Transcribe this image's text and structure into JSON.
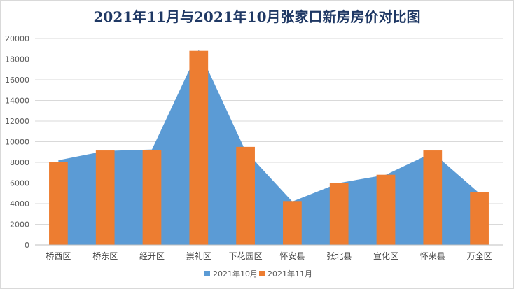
{
  "chart_data": {
    "type": "bar",
    "title": "2021年11月与2021年10月张家口新房房价对比图",
    "categories": [
      "桥西区",
      "桥东区",
      "经开区",
      "崇礼区",
      "下花园区",
      "怀安县",
      "张北县",
      "宣化区",
      "怀来县",
      "万全区"
    ],
    "series": [
      {
        "name": "2021年10月",
        "render": "area",
        "color": "#5b9bd5",
        "values": [
          8200,
          9100,
          9250,
          18900,
          9100,
          4200,
          6000,
          6800,
          8950,
          5000
        ]
      },
      {
        "name": "2021年11月",
        "render": "bar",
        "color": "#ed7d31",
        "values": [
          8050,
          9150,
          9200,
          18800,
          9500,
          4250,
          6000,
          6800,
          9150,
          5150
        ]
      }
    ],
    "ylim": [
      0,
      20000
    ],
    "yticks": [
      0,
      2000,
      4000,
      6000,
      8000,
      10000,
      12000,
      14000,
      16000,
      18000,
      20000
    ],
    "xlabel": "",
    "ylabel": "",
    "grid": true,
    "legend_position": "bottom"
  }
}
